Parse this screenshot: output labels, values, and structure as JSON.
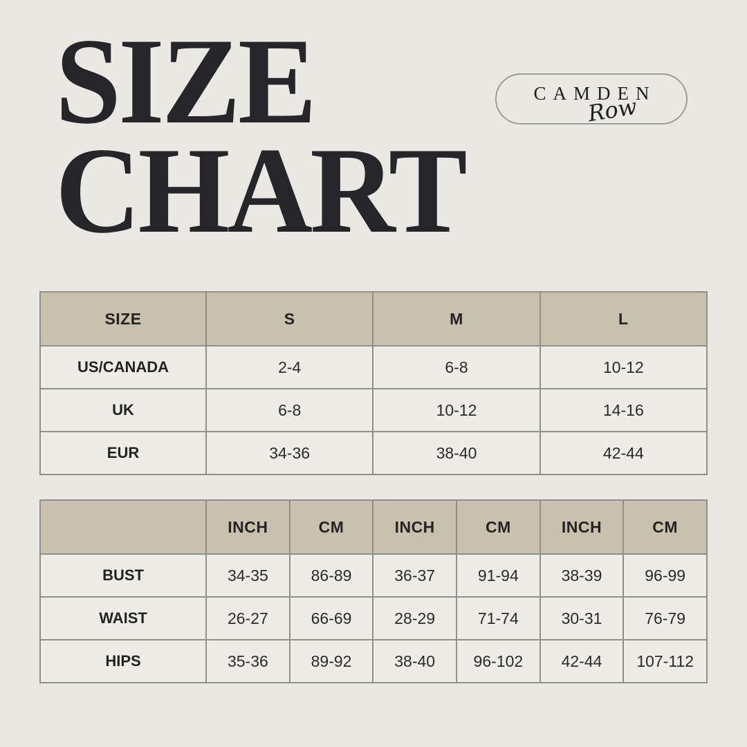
{
  "page": {
    "background": "#EAE8E3"
  },
  "title": {
    "line1": "SIZE",
    "line2": "CHART"
  },
  "logo": {
    "brand": "CAMDEN",
    "sub": "Row"
  },
  "colors": {
    "background": "#EAE8E3",
    "table_header_bg": "#C8C1AD",
    "table_cell_bg": "#EDECE7",
    "table_border": "#8E8E8B",
    "text": "#26262A"
  },
  "size_table": {
    "header": [
      "SIZE",
      "S",
      "M",
      "L"
    ],
    "rows": [
      {
        "label": "US/CANADA",
        "values": [
          "2-4",
          "6-8",
          "10-12"
        ]
      },
      {
        "label": "UK",
        "values": [
          "6-8",
          "10-12",
          "14-16"
        ]
      },
      {
        "label": "EUR",
        "values": [
          "34-36",
          "38-40",
          "42-44"
        ]
      }
    ]
  },
  "measurement_table": {
    "header": [
      "",
      "INCH",
      "CM",
      "INCH",
      "CM",
      "INCH",
      "CM"
    ],
    "rows": [
      {
        "label": "BUST",
        "values": [
          "34-35",
          "86-89",
          "36-37",
          "91-94",
          "38-39",
          "96-99"
        ]
      },
      {
        "label": "WAIST",
        "values": [
          "26-27",
          "66-69",
          "28-29",
          "71-74",
          "30-31",
          "76-79"
        ]
      },
      {
        "label": "HIPS",
        "values": [
          "35-36",
          "89-92",
          "38-40",
          "96-102",
          "42-44",
          "107-112"
        ]
      }
    ]
  }
}
